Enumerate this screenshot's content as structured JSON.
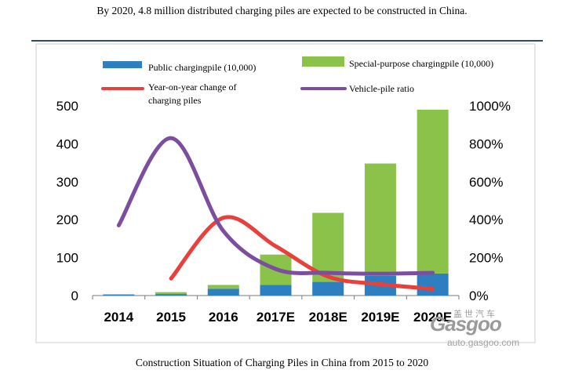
{
  "header": {
    "caption": "By 2020, 4.8 million distributed charging piles are expected to be constructed in China."
  },
  "footer": {
    "caption": "Construction Situation of Charging Piles in China from 2015 to 2020"
  },
  "watermark": {
    "brand": "Gasgoo",
    "chinese": "盖世汽车",
    "url": "auto.gasgoo.com"
  },
  "chart_data": {
    "type": "bar",
    "stacked": true,
    "categories": [
      "2014",
      "2015",
      "2016",
      "2017E",
      "2018E",
      "2019E",
      "2020E"
    ],
    "series": [
      {
        "name": "Public chargingpile (10,000)",
        "kind": "bar",
        "axis": "left",
        "color": "#2e7fbf",
        "values": [
          3,
          4,
          18,
          28,
          36,
          52,
          58
        ]
      },
      {
        "name": "Special-purpose chargingpile (10,000)",
        "kind": "bar",
        "axis": "left",
        "color": "#8bc34a",
        "values": [
          0,
          5,
          10,
          80,
          182,
          296,
          432
        ]
      },
      {
        "name": "Year-on-year change of charging piles",
        "kind": "line",
        "axis": "right",
        "color": "#e8403a",
        "values": [
          null,
          90,
          410,
          260,
          100,
          60,
          35
        ]
      },
      {
        "name": "Vehicle-pile ratio",
        "kind": "line",
        "axis": "right",
        "color": "#7b4f9e",
        "values": [
          370,
          830,
          340,
          140,
          120,
          115,
          120
        ]
      }
    ],
    "legend": {
      "public": "Public chargingpile (10,000)",
      "special": "Special-purpose chargingpile (10,000)",
      "yoy_line1": "Year-on-year change of",
      "yoy_line2": "charging piles",
      "ratio": "Vehicle-pile ratio"
    },
    "y_left": {
      "min": 0,
      "max": 500,
      "ticks": [
        "0",
        "100",
        "200",
        "300",
        "400",
        "500"
      ]
    },
    "y_right": {
      "min": 0,
      "max": 1000,
      "ticks": [
        "0%",
        "200%",
        "400%",
        "600%",
        "800%",
        "1000%"
      ]
    }
  }
}
